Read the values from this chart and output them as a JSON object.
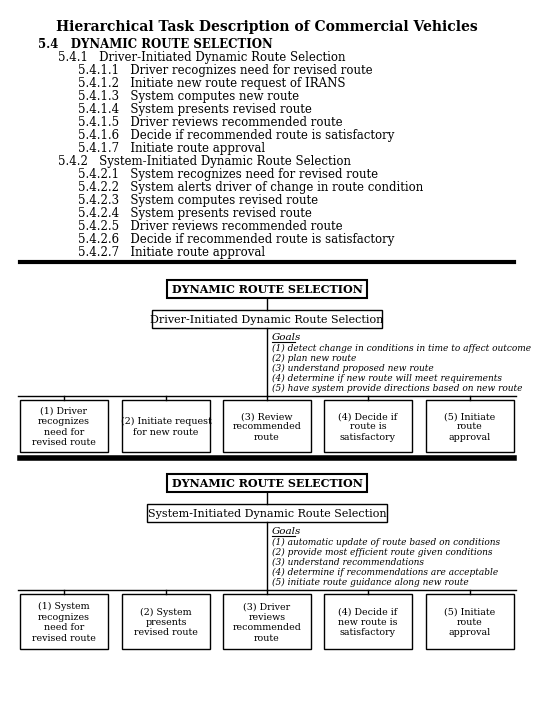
{
  "title": "Hierarchical Task Description of Commercial Vehicles",
  "outline_text": [
    {
      "indent": 0,
      "bold": true,
      "text": "5.4   DYNAMIC ROUTE SELECTION"
    },
    {
      "indent": 1,
      "bold": false,
      "text": "5.4.1   Driver-Initiated Dynamic Route Selection"
    },
    {
      "indent": 2,
      "bold": false,
      "text": "5.4.1.1   Driver recognizes need for revised route"
    },
    {
      "indent": 2,
      "bold": false,
      "text": "5.4.1.2   Initiate new route request of IRANS"
    },
    {
      "indent": 2,
      "bold": false,
      "text": "5.4.1.3   System computes new route"
    },
    {
      "indent": 2,
      "bold": false,
      "text": "5.4.1.4   System presents revised route"
    },
    {
      "indent": 2,
      "bold": false,
      "text": "5.4.1.5   Driver reviews recommended route"
    },
    {
      "indent": 2,
      "bold": false,
      "text": "5.4.1.6   Decide if recommended route is satisfactory"
    },
    {
      "indent": 2,
      "bold": false,
      "text": "5.4.1.7   Initiate route approval"
    },
    {
      "indent": 1,
      "bold": false,
      "text": "5.4.2   System-Initiated Dynamic Route Selection"
    },
    {
      "indent": 2,
      "bold": false,
      "text": "5.4.2.1   System recognizes need for revised route"
    },
    {
      "indent": 2,
      "bold": false,
      "text": "5.4.2.2   System alerts driver of change in route condition"
    },
    {
      "indent": 2,
      "bold": false,
      "text": "5.4.2.3   System computes revised route"
    },
    {
      "indent": 2,
      "bold": false,
      "text": "5.4.2.4   System presents revised route"
    },
    {
      "indent": 2,
      "bold": false,
      "text": "5.4.2.5   Driver reviews recommended route"
    },
    {
      "indent": 2,
      "bold": false,
      "text": "5.4.2.6   Decide if recommended route is satisfactory"
    },
    {
      "indent": 2,
      "bold": false,
      "text": "5.4.2.7   Initiate route approval"
    }
  ],
  "diagram1": {
    "top_box": "DYNAMIC ROUTE SELECTION",
    "mid_box": "Driver-Initiated Dynamic Route Selection",
    "goals_title": "Goals",
    "goals": [
      "(1) detect change in conditions in time to affect outcome",
      "(2) plan new route",
      "(3) understand proposed new route",
      "(4) determine if new route will meet requirements",
      "(5) have system provide directions based on new route"
    ],
    "boxes": [
      "(1) Driver\nrecognizes\nneed for\nrevised route",
      "(2) Initiate request\nfor new route",
      "(3) Review\nrecommended\nroute",
      "(4) Decide if\nroute is\nsatisfactory",
      "(5) Initiate\nroute\napproval"
    ]
  },
  "diagram2": {
    "top_box": "DYNAMIC ROUTE SELECTION",
    "mid_box": "System-Initiated Dynamic Route Selection",
    "goals_title": "Goals",
    "goals": [
      "(1) automatic update of route based on conditions",
      "(2) provide most efficient route given conditions",
      "(3) understand recommendations",
      "(4) determine if recommendations are acceptable",
      "(5) initiate route guidance along new route"
    ],
    "boxes": [
      "(1) System\nrecognizes\nneed for\nrevised route",
      "(2) System\npresents\nrevised route",
      "(3) Driver\nreviews\nrecommended\nroute",
      "(4) Decide if\nnew route is\nsatisfactory",
      "(5) Initiate\nroute\napproval"
    ]
  },
  "bg_color": "#ffffff",
  "text_color": "#000000",
  "box_color": "#ffffff",
  "border_color": "#000000"
}
